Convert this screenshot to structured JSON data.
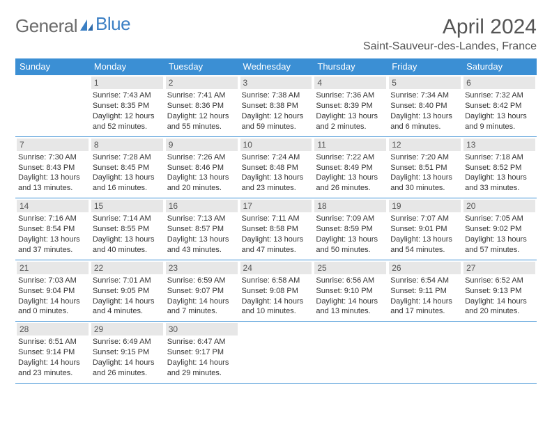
{
  "logo": {
    "text_gray": "General",
    "text_blue": "Blue"
  },
  "title": "April 2024",
  "location": "Saint-Sauveur-des-Landes, France",
  "colors": {
    "header_bg": "#3b8fd4",
    "header_text": "#ffffff",
    "daynum_bg": "#e7e7e7",
    "border": "#3b8fd4",
    "logo_gray": "#6b6b6b",
    "logo_blue": "#3b7fc4"
  },
  "day_headers": [
    "Sunday",
    "Monday",
    "Tuesday",
    "Wednesday",
    "Thursday",
    "Friday",
    "Saturday"
  ],
  "weeks": [
    [
      {
        "num": "",
        "lines": []
      },
      {
        "num": "1",
        "lines": [
          "Sunrise: 7:43 AM",
          "Sunset: 8:35 PM",
          "Daylight: 12 hours",
          "and 52 minutes."
        ]
      },
      {
        "num": "2",
        "lines": [
          "Sunrise: 7:41 AM",
          "Sunset: 8:36 PM",
          "Daylight: 12 hours",
          "and 55 minutes."
        ]
      },
      {
        "num": "3",
        "lines": [
          "Sunrise: 7:38 AM",
          "Sunset: 8:38 PM",
          "Daylight: 12 hours",
          "and 59 minutes."
        ]
      },
      {
        "num": "4",
        "lines": [
          "Sunrise: 7:36 AM",
          "Sunset: 8:39 PM",
          "Daylight: 13 hours",
          "and 2 minutes."
        ]
      },
      {
        "num": "5",
        "lines": [
          "Sunrise: 7:34 AM",
          "Sunset: 8:40 PM",
          "Daylight: 13 hours",
          "and 6 minutes."
        ]
      },
      {
        "num": "6",
        "lines": [
          "Sunrise: 7:32 AM",
          "Sunset: 8:42 PM",
          "Daylight: 13 hours",
          "and 9 minutes."
        ]
      }
    ],
    [
      {
        "num": "7",
        "lines": [
          "Sunrise: 7:30 AM",
          "Sunset: 8:43 PM",
          "Daylight: 13 hours",
          "and 13 minutes."
        ]
      },
      {
        "num": "8",
        "lines": [
          "Sunrise: 7:28 AM",
          "Sunset: 8:45 PM",
          "Daylight: 13 hours",
          "and 16 minutes."
        ]
      },
      {
        "num": "9",
        "lines": [
          "Sunrise: 7:26 AM",
          "Sunset: 8:46 PM",
          "Daylight: 13 hours",
          "and 20 minutes."
        ]
      },
      {
        "num": "10",
        "lines": [
          "Sunrise: 7:24 AM",
          "Sunset: 8:48 PM",
          "Daylight: 13 hours",
          "and 23 minutes."
        ]
      },
      {
        "num": "11",
        "lines": [
          "Sunrise: 7:22 AM",
          "Sunset: 8:49 PM",
          "Daylight: 13 hours",
          "and 26 minutes."
        ]
      },
      {
        "num": "12",
        "lines": [
          "Sunrise: 7:20 AM",
          "Sunset: 8:51 PM",
          "Daylight: 13 hours",
          "and 30 minutes."
        ]
      },
      {
        "num": "13",
        "lines": [
          "Sunrise: 7:18 AM",
          "Sunset: 8:52 PM",
          "Daylight: 13 hours",
          "and 33 minutes."
        ]
      }
    ],
    [
      {
        "num": "14",
        "lines": [
          "Sunrise: 7:16 AM",
          "Sunset: 8:54 PM",
          "Daylight: 13 hours",
          "and 37 minutes."
        ]
      },
      {
        "num": "15",
        "lines": [
          "Sunrise: 7:14 AM",
          "Sunset: 8:55 PM",
          "Daylight: 13 hours",
          "and 40 minutes."
        ]
      },
      {
        "num": "16",
        "lines": [
          "Sunrise: 7:13 AM",
          "Sunset: 8:57 PM",
          "Daylight: 13 hours",
          "and 43 minutes."
        ]
      },
      {
        "num": "17",
        "lines": [
          "Sunrise: 7:11 AM",
          "Sunset: 8:58 PM",
          "Daylight: 13 hours",
          "and 47 minutes."
        ]
      },
      {
        "num": "18",
        "lines": [
          "Sunrise: 7:09 AM",
          "Sunset: 8:59 PM",
          "Daylight: 13 hours",
          "and 50 minutes."
        ]
      },
      {
        "num": "19",
        "lines": [
          "Sunrise: 7:07 AM",
          "Sunset: 9:01 PM",
          "Daylight: 13 hours",
          "and 54 minutes."
        ]
      },
      {
        "num": "20",
        "lines": [
          "Sunrise: 7:05 AM",
          "Sunset: 9:02 PM",
          "Daylight: 13 hours",
          "and 57 minutes."
        ]
      }
    ],
    [
      {
        "num": "21",
        "lines": [
          "Sunrise: 7:03 AM",
          "Sunset: 9:04 PM",
          "Daylight: 14 hours",
          "and 0 minutes."
        ]
      },
      {
        "num": "22",
        "lines": [
          "Sunrise: 7:01 AM",
          "Sunset: 9:05 PM",
          "Daylight: 14 hours",
          "and 4 minutes."
        ]
      },
      {
        "num": "23",
        "lines": [
          "Sunrise: 6:59 AM",
          "Sunset: 9:07 PM",
          "Daylight: 14 hours",
          "and 7 minutes."
        ]
      },
      {
        "num": "24",
        "lines": [
          "Sunrise: 6:58 AM",
          "Sunset: 9:08 PM",
          "Daylight: 14 hours",
          "and 10 minutes."
        ]
      },
      {
        "num": "25",
        "lines": [
          "Sunrise: 6:56 AM",
          "Sunset: 9:10 PM",
          "Daylight: 14 hours",
          "and 13 minutes."
        ]
      },
      {
        "num": "26",
        "lines": [
          "Sunrise: 6:54 AM",
          "Sunset: 9:11 PM",
          "Daylight: 14 hours",
          "and 17 minutes."
        ]
      },
      {
        "num": "27",
        "lines": [
          "Sunrise: 6:52 AM",
          "Sunset: 9:13 PM",
          "Daylight: 14 hours",
          "and 20 minutes."
        ]
      }
    ],
    [
      {
        "num": "28",
        "lines": [
          "Sunrise: 6:51 AM",
          "Sunset: 9:14 PM",
          "Daylight: 14 hours",
          "and 23 minutes."
        ]
      },
      {
        "num": "29",
        "lines": [
          "Sunrise: 6:49 AM",
          "Sunset: 9:15 PM",
          "Daylight: 14 hours",
          "and 26 minutes."
        ]
      },
      {
        "num": "30",
        "lines": [
          "Sunrise: 6:47 AM",
          "Sunset: 9:17 PM",
          "Daylight: 14 hours",
          "and 29 minutes."
        ]
      },
      {
        "num": "",
        "lines": []
      },
      {
        "num": "",
        "lines": []
      },
      {
        "num": "",
        "lines": []
      },
      {
        "num": "",
        "lines": []
      }
    ]
  ]
}
